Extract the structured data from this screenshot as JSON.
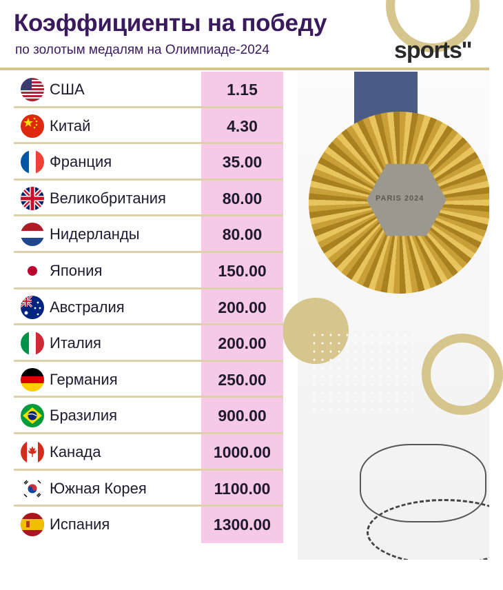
{
  "header": {
    "title": "Коэффициенты на победу",
    "subtitle": "по золотым медалям на Олимпиаде-2024",
    "logo": "sports''"
  },
  "colors": {
    "title": "#3a1a5e",
    "odds_background": "#f6c9e6",
    "gold_accent": "#d6c58d"
  },
  "photo": {
    "medal_text": "PARIS 2024"
  },
  "rows": [
    {
      "country": "США",
      "odds": "1.15",
      "flag_icon": "usa-flag-icon"
    },
    {
      "country": "Китай",
      "odds": "4.30",
      "flag_icon": "china-flag-icon"
    },
    {
      "country": "Франция",
      "odds": "35.00",
      "flag_icon": "france-flag-icon"
    },
    {
      "country": "Великобритания",
      "odds": "80.00",
      "flag_icon": "uk-flag-icon"
    },
    {
      "country": "Нидерланды",
      "odds": "80.00",
      "flag_icon": "netherlands-flag-icon"
    },
    {
      "country": "Япония",
      "odds": "150.00",
      "flag_icon": "japan-flag-icon"
    },
    {
      "country": "Австралия",
      "odds": "200.00",
      "flag_icon": "australia-flag-icon"
    },
    {
      "country": "Италия",
      "odds": "200.00",
      "flag_icon": "italy-flag-icon"
    },
    {
      "country": "Германия",
      "odds": "250.00",
      "flag_icon": "germany-flag-icon"
    },
    {
      "country": "Бразилия",
      "odds": "900.00",
      "flag_icon": "brazil-flag-icon"
    },
    {
      "country": "Канада",
      "odds": "1000.00",
      "flag_icon": "canada-flag-icon"
    },
    {
      "country": "Южная Корея",
      "odds": "1100.00",
      "flag_icon": "south-korea-flag-icon"
    },
    {
      "country": "Испания",
      "odds": "1300.00",
      "flag_icon": "spain-flag-icon"
    }
  ]
}
